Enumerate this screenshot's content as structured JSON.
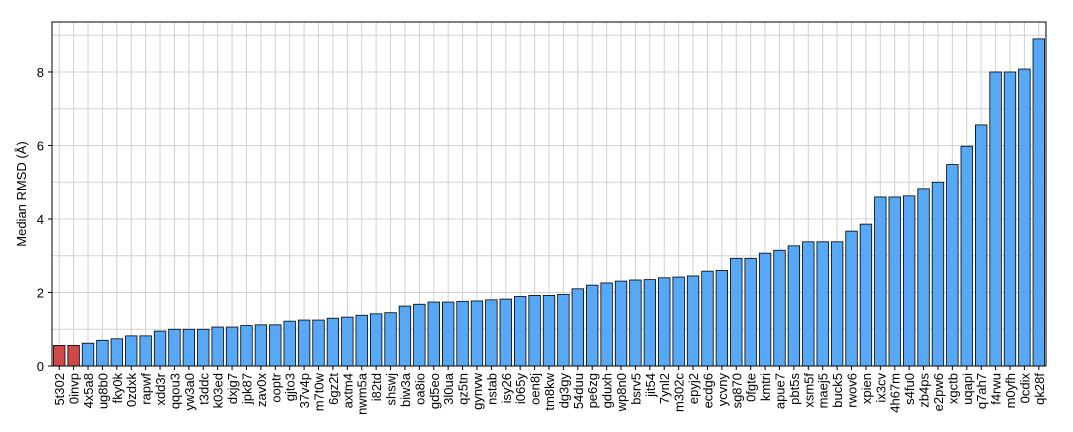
{
  "chart_data": {
    "type": "bar",
    "ylabel": "Median RMSD (Å)",
    "categories": [
      "5t302",
      "0invp",
      "4x5a8",
      "ug8b0",
      "fky0k",
      "0zdxk",
      "rapwf",
      "xdd3r",
      "qqou3",
      "yw3a0",
      "t3ddc",
      "k03ed",
      "dxjg7",
      "jpk87",
      "zav0x",
      "ooptr",
      "gjto3",
      "37v4p",
      "m7t0w",
      "6gz2t",
      "axtm4",
      "nwm5a",
      "i82td",
      "shswj",
      "biw3a",
      "oa8io",
      "gd5eo",
      "3l0ua",
      "qz5tn",
      "gynvw",
      "nstab",
      "isy26",
      "i065y",
      "oen8j",
      "tm8kw",
      "dg3gy",
      "54duu",
      "pe6zg",
      "gduxh",
      "wp8n0",
      "bsrv5",
      "jit54",
      "7ynl2",
      "m302c",
      "epyj2",
      "ecdg6",
      "ycvny",
      "sg870",
      "0fgte",
      "kmtri",
      "apue7",
      "pbt5s",
      "xsm5f",
      "maej5",
      "buck5",
      "rwov6",
      "xpien",
      "ix3cv",
      "4h67m",
      "s4fu0",
      "zb4ps",
      "e2pw6",
      "xgctb",
      "uqapi",
      "q7ah7",
      "f4rwu",
      "m0yfh",
      "0cdix",
      "qk28f"
    ],
    "values": [
      0.56,
      0.56,
      0.62,
      0.7,
      0.74,
      0.82,
      0.82,
      0.95,
      1.0,
      1.0,
      1.0,
      1.06,
      1.06,
      1.1,
      1.12,
      1.12,
      1.22,
      1.25,
      1.25,
      1.3,
      1.33,
      1.38,
      1.42,
      1.45,
      1.63,
      1.68,
      1.74,
      1.74,
      1.76,
      1.77,
      1.8,
      1.82,
      1.89,
      1.92,
      1.92,
      1.95,
      2.1,
      2.2,
      2.26,
      2.31,
      2.34,
      2.35,
      2.4,
      2.42,
      2.45,
      2.58,
      2.6,
      2.93,
      2.93,
      3.07,
      3.15,
      3.27,
      3.38,
      3.38,
      3.38,
      3.67,
      3.86,
      4.6,
      4.6,
      4.63,
      4.82,
      5.0,
      5.48,
      5.98,
      6.56,
      8.0,
      8.0,
      8.08,
      8.9
    ],
    "colors": [
      "#d04848",
      "#d04848",
      "#58a8f8",
      "#58a8f8",
      "#58a8f8",
      "#58a8f8",
      "#58a8f8",
      "#58a8f8",
      "#58a8f8",
      "#58a8f8",
      "#58a8f8",
      "#58a8f8",
      "#58a8f8",
      "#58a8f8",
      "#58a8f8",
      "#58a8f8",
      "#58a8f8",
      "#58a8f8",
      "#58a8f8",
      "#58a8f8",
      "#58a8f8",
      "#58a8f8",
      "#58a8f8",
      "#58a8f8",
      "#58a8f8",
      "#58a8f8",
      "#58a8f8",
      "#58a8f8",
      "#58a8f8",
      "#58a8f8",
      "#58a8f8",
      "#58a8f8",
      "#58a8f8",
      "#58a8f8",
      "#58a8f8",
      "#58a8f8",
      "#58a8f8",
      "#58a8f8",
      "#58a8f8",
      "#58a8f8",
      "#58a8f8",
      "#58a8f8",
      "#58a8f8",
      "#58a8f8",
      "#58a8f8",
      "#58a8f8",
      "#58a8f8",
      "#58a8f8",
      "#58a8f8",
      "#58a8f8",
      "#58a8f8",
      "#58a8f8",
      "#58a8f8",
      "#58a8f8",
      "#58a8f8",
      "#58a8f8",
      "#58a8f8",
      "#58a8f8",
      "#58a8f8",
      "#58a8f8",
      "#58a8f8",
      "#58a8f8",
      "#58a8f8",
      "#58a8f8",
      "#58a8f8",
      "#58a8f8",
      "#58a8f8",
      "#58a8f8",
      "#58a8f8"
    ],
    "ylim": [
      0,
      9.36
    ],
    "yticks": [
      0,
      2,
      4,
      6,
      8
    ],
    "minor_yticks": [
      1,
      3,
      5,
      7,
      9
    ],
    "grid": true
  }
}
